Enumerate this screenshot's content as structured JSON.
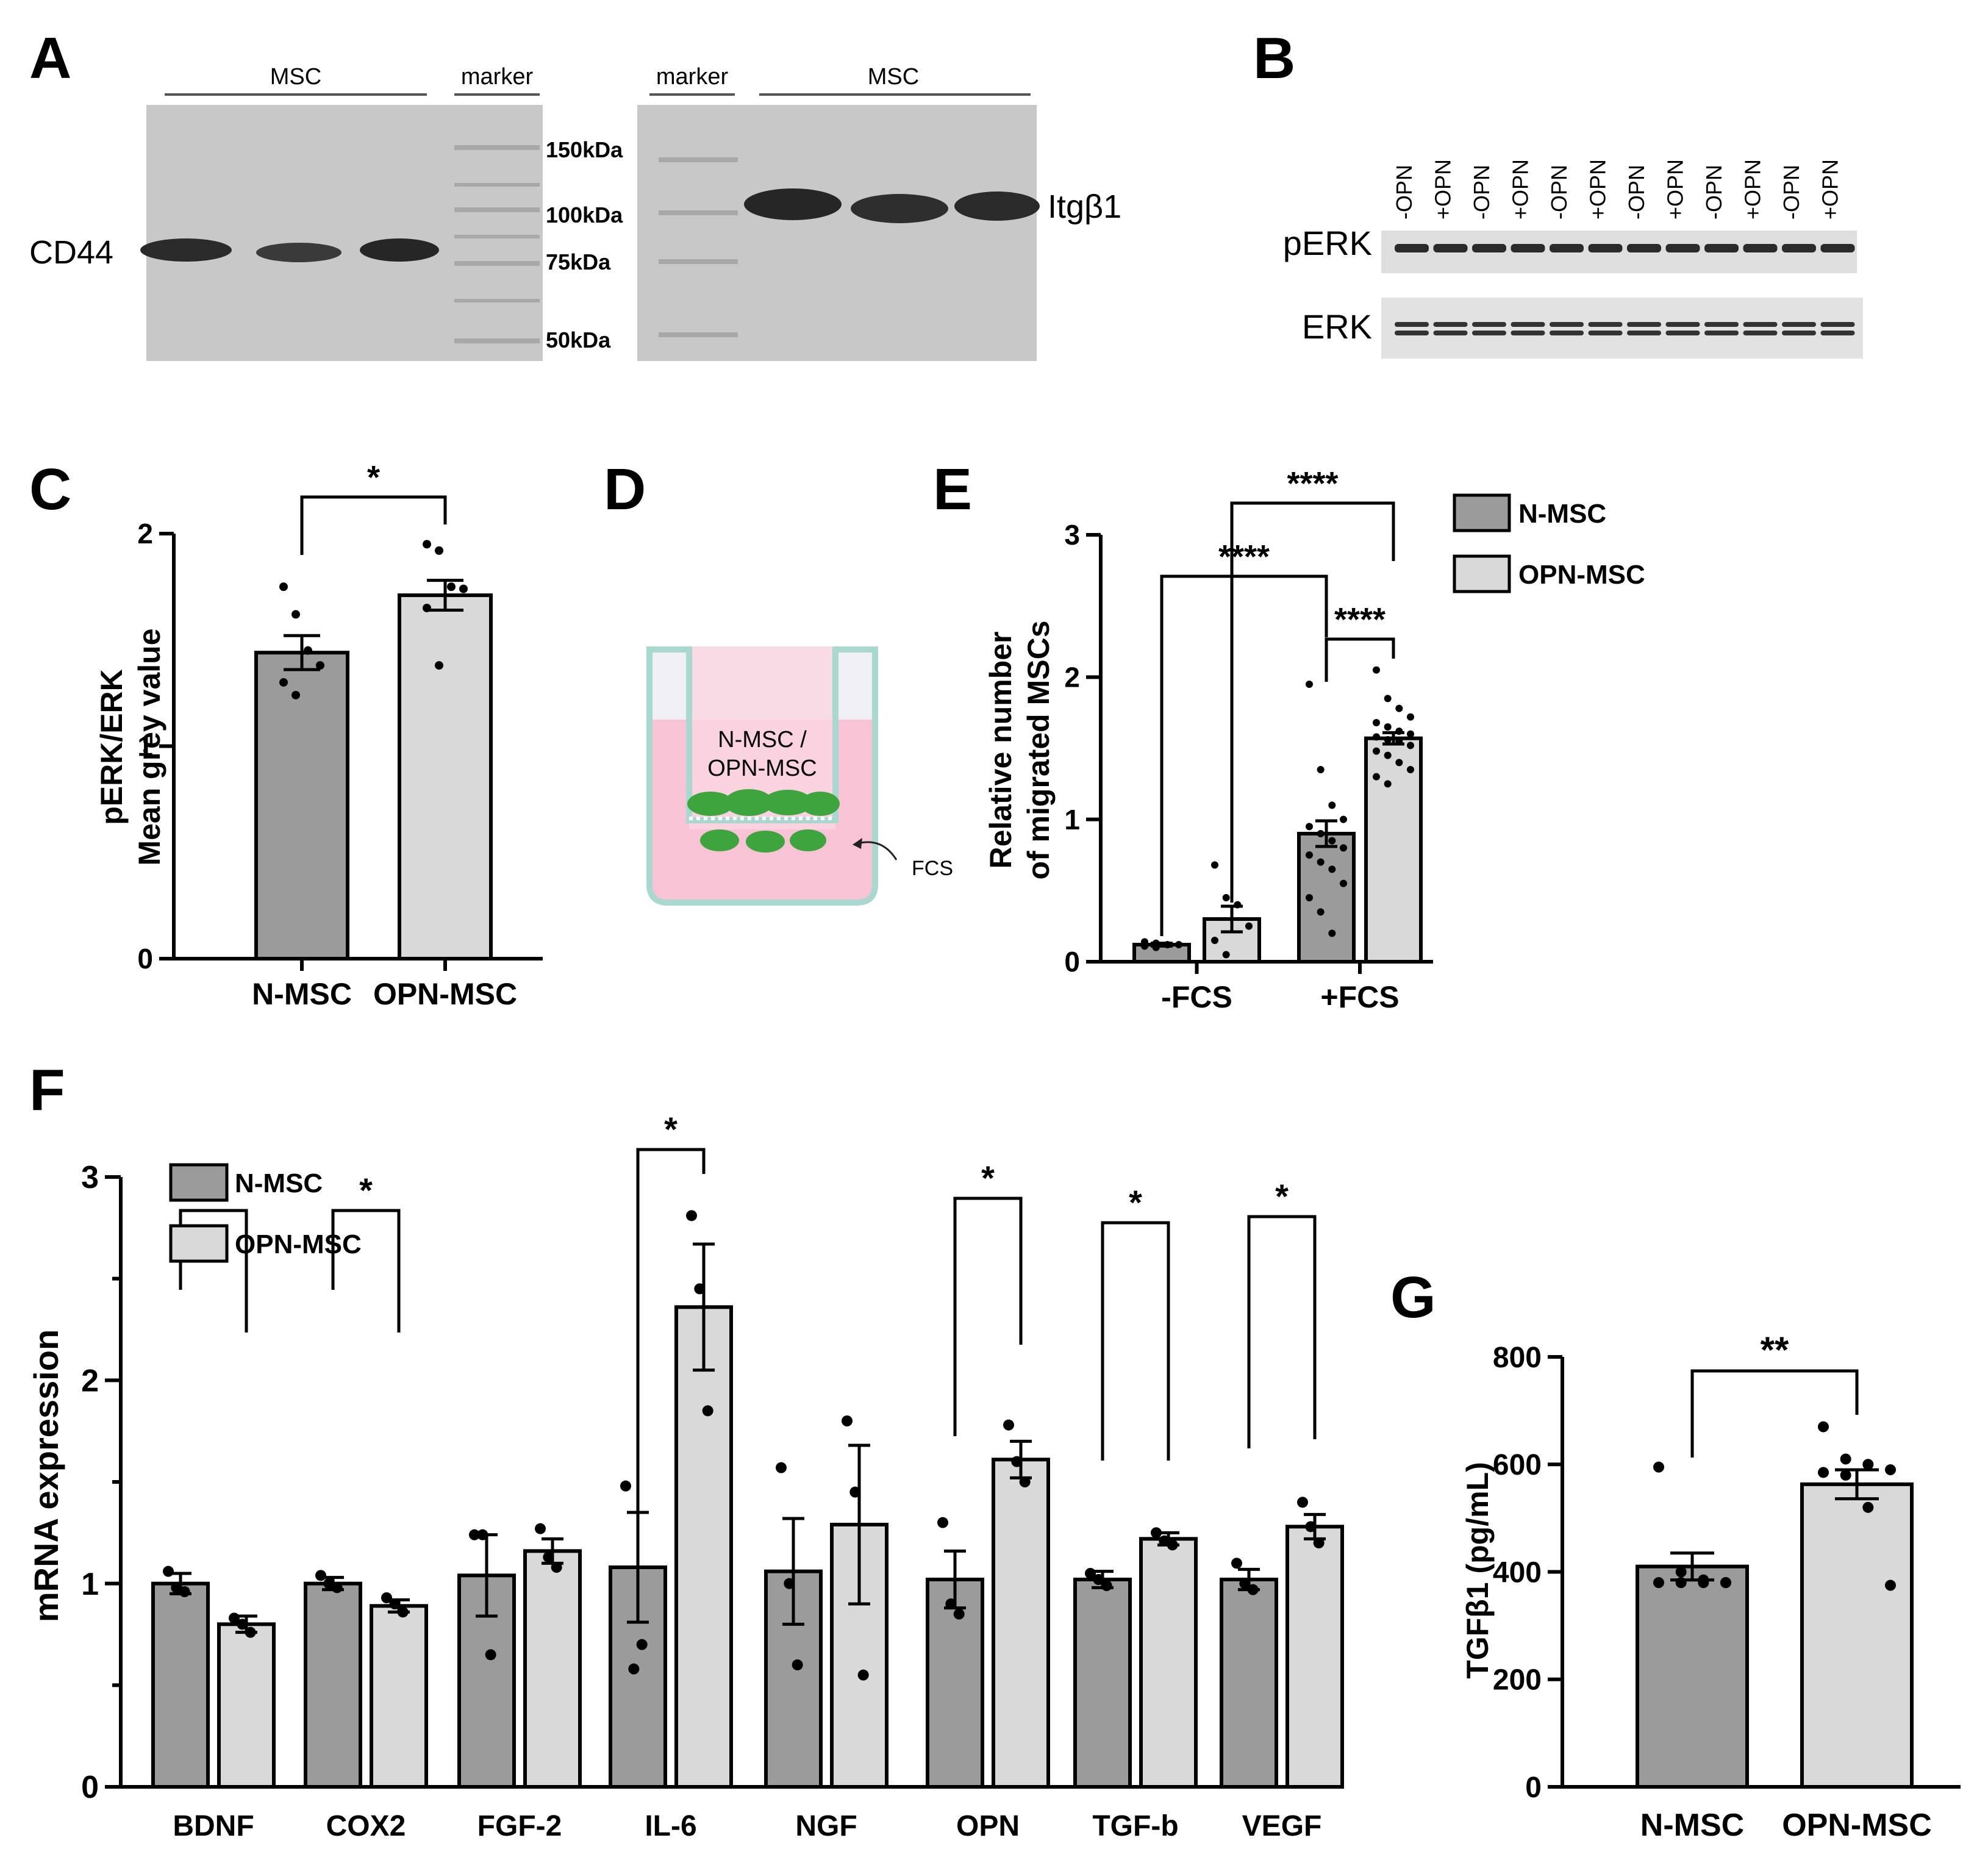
{
  "colors": {
    "nmsc": "#9b9b9b",
    "opnmsc": "#d9d9d9",
    "blot_bg": "#c9c9c9",
    "blot_band": "#222222",
    "medium_pink": "#f7c9d8",
    "well_stroke": "#a7d6cf",
    "cells": "#3fa83f"
  },
  "panel_labels": [
    "A",
    "B",
    "C",
    "D",
    "E",
    "F",
    "G"
  ],
  "panel_a": {
    "left_group_label": "MSC",
    "left_marker_label": "marker",
    "right_marker_label": "marker",
    "right_group_label": "MSC",
    "protein_left": "CD44",
    "protein_right": "Itgβ1",
    "ladder": [
      "150kDa",
      "100kDa",
      "75kDa",
      "50kDa"
    ]
  },
  "panel_b": {
    "lanes": [
      "-OPN",
      "+OPN",
      "-OPN",
      "+OPN",
      "-OPN",
      "+OPN",
      "-OPN",
      "+OPN",
      "-OPN",
      "+OPN",
      "-OPN",
      "+OPN"
    ],
    "row_labels": [
      "pERK",
      "ERK"
    ]
  },
  "panel_d": {
    "cell_label_1": "N-MSC /",
    "cell_label_2": "OPN-MSC",
    "fcs_label": "FCS"
  },
  "chart_data": [
    {
      "id": "C",
      "type": "bar",
      "title": "",
      "ylabel_line1": "pERK/ERK",
      "ylabel_line2": "Mean grey value",
      "xlabel": "",
      "ylim": [
        0,
        2
      ],
      "yticks": [
        "0",
        "1",
        "2"
      ],
      "categories": [
        "N-MSC",
        "OPN-MSC"
      ],
      "values": [
        1.44,
        1.71
      ],
      "errors": [
        0.08,
        0.07
      ],
      "points": [
        [
          1.75,
          1.62,
          1.45,
          1.38,
          1.3,
          1.24
        ],
        [
          1.95,
          1.92,
          1.75,
          1.74,
          1.65,
          1.38
        ]
      ],
      "significance": [
        {
          "from": 0,
          "to": 1,
          "label": "*"
        }
      ]
    },
    {
      "id": "E",
      "type": "bar",
      "title": "",
      "ylabel_line1": "Relative number",
      "ylabel_line2": "of migrated MSCs",
      "ylim": [
        0,
        3
      ],
      "yticks": [
        "0",
        "1",
        "2",
        "3"
      ],
      "groups": [
        "-FCS",
        "+FCS"
      ],
      "series": [
        {
          "name": "N-MSC",
          "values": [
            0.12,
            0.9
          ],
          "errors": [
            0.01,
            0.09
          ]
        },
        {
          "name": "OPN-MSC",
          "values": [
            0.3,
            1.57
          ],
          "errors": [
            0.09,
            0.04
          ]
        }
      ],
      "points": [
        [
          [
            0.14,
            0.13,
            0.12,
            0.12,
            0.11,
            0.1
          ],
          [
            1.95,
            1.35,
            1.1,
            1.0,
            0.95,
            0.9,
            0.85,
            0.8,
            0.75,
            0.7,
            0.65,
            0.55,
            0.45,
            0.35,
            0.2
          ]
        ],
        [
          [
            0.68,
            0.45,
            0.4,
            0.25,
            0.15,
            0.05
          ],
          [
            2.05,
            1.85,
            1.78,
            1.72,
            1.68,
            1.65,
            1.62,
            1.6,
            1.58,
            1.56,
            1.55,
            1.52,
            1.48,
            1.45,
            1.4,
            1.35,
            1.3,
            1.25
          ]
        ]
      ],
      "legend": [
        "N-MSC",
        "OPN-MSC"
      ],
      "significance": [
        {
          "from": "0-0",
          "to": "1-0",
          "label": "****"
        },
        {
          "from": "0-1",
          "to": "1-1",
          "label": "****"
        },
        {
          "from": "1-0",
          "to": "1-1",
          "label": "****"
        }
      ]
    },
    {
      "id": "F",
      "type": "bar",
      "title": "",
      "ylabel": "mRNA expression",
      "ylim": [
        0,
        3
      ],
      "yticks": [
        "0",
        "1",
        "2",
        "3"
      ],
      "categories": [
        "BDNF",
        "COX2",
        "FGF-2",
        "IL-6",
        "NGF",
        "OPN",
        "TGF-b",
        "VEGF"
      ],
      "legend": [
        "N-MSC",
        "OPN-MSC"
      ],
      "series": [
        {
          "name": "N-MSC",
          "values": [
            1.0,
            1.0,
            1.04,
            1.08,
            1.06,
            1.02,
            1.02,
            1.02
          ],
          "errors": [
            0.05,
            0.03,
            0.2,
            0.27,
            0.26,
            0.14,
            0.04,
            0.05
          ]
        },
        {
          "name": "OPN-MSC",
          "values": [
            0.8,
            0.89,
            1.16,
            2.36,
            1.29,
            1.61,
            1.22,
            1.28
          ],
          "errors": [
            0.04,
            0.03,
            0.06,
            0.31,
            0.39,
            0.09,
            0.03,
            0.06
          ]
        }
      ],
      "points": [
        [
          [
            1.06,
            0.98,
            0.96
          ],
          [
            1.04,
            1.0,
            0.98
          ],
          [
            1.24,
            1.24,
            0.65
          ],
          [
            1.48,
            0.58,
            0.7
          ],
          [
            1.57,
            1.0,
            0.6
          ],
          [
            1.3,
            0.9,
            0.85
          ],
          [
            1.05,
            1.02,
            0.99
          ],
          [
            1.1,
            1.0,
            0.97
          ]
        ],
        [
          [
            0.83,
            0.8,
            0.76
          ],
          [
            0.93,
            0.9,
            0.86
          ],
          [
            1.27,
            1.13,
            1.08
          ],
          [
            2.81,
            2.45,
            1.85
          ],
          [
            1.8,
            1.45,
            0.55
          ],
          [
            1.78,
            1.6,
            1.5
          ],
          [
            1.25,
            1.21,
            1.19
          ],
          [
            1.4,
            1.28,
            1.2
          ]
        ]
      ],
      "significance": [
        {
          "index": 0,
          "label": "*"
        },
        {
          "index": 1,
          "label": "*"
        },
        {
          "index": 3,
          "label": "*"
        },
        {
          "index": 5,
          "label": "*"
        },
        {
          "index": 6,
          "label": "*"
        },
        {
          "index": 7,
          "label": "*"
        }
      ]
    },
    {
      "id": "G",
      "type": "bar",
      "title": "",
      "ylabel": "TGFβ1 (pg/mL)",
      "ylim": [
        0,
        800
      ],
      "yticks": [
        "0",
        "200",
        "400",
        "600",
        "800"
      ],
      "categories": [
        "N-MSC",
        "OPN-MSC"
      ],
      "values": [
        410,
        563
      ],
      "errors": [
        25,
        27
      ],
      "points": [
        [
          595,
          400,
          385,
          380,
          380,
          380,
          380,
          380
        ],
        [
          670,
          610,
          600,
          590,
          585,
          580,
          520,
          375
        ]
      ],
      "significance": [
        {
          "from": 0,
          "to": 1,
          "label": "**"
        }
      ]
    }
  ]
}
